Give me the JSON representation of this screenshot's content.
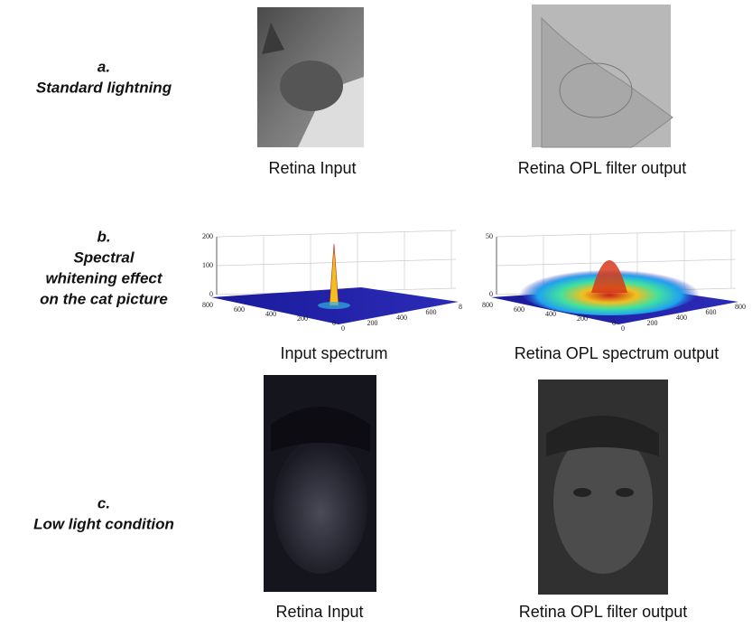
{
  "rows": [
    {
      "letter": "a.",
      "title": [
        "Standard lightning"
      ],
      "panels": [
        {
          "caption": "Retina Input"
        },
        {
          "caption": "Retina OPL filter output"
        }
      ]
    },
    {
      "letter": "b.",
      "title": [
        "Spectral",
        "whitening effect",
        "on the cat picture"
      ],
      "panels": [
        {
          "caption": "Input spectrum",
          "z_ticks": [
            "200",
            "100",
            "0"
          ],
          "y_ticks": [
            "800",
            "600",
            "400",
            "200",
            "0"
          ],
          "x_ticks": [
            "0",
            "200",
            "400",
            "600",
            "8"
          ]
        },
        {
          "caption": "Retina OPL spectrum output",
          "z_ticks": [
            "50",
            "0"
          ],
          "y_ticks": [
            "800",
            "600",
            "400",
            "200",
            "0"
          ],
          "x_ticks": [
            "0",
            "200",
            "400",
            "600",
            "800"
          ]
        }
      ]
    },
    {
      "letter": "c.",
      "title": [
        "Low light condition"
      ],
      "panels": [
        {
          "caption": "Retina Input"
        },
        {
          "caption": "Retina OPL filter output"
        }
      ]
    }
  ]
}
